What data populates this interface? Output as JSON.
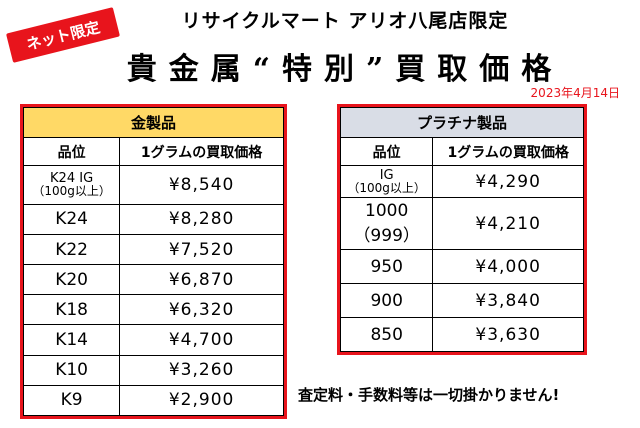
{
  "badge": "ネット限定",
  "store_title": "リサイクルマート アリオ八尾店限定",
  "main_title": "貴金属“特別”買取価格",
  "date": "2023年4月14日",
  "gold": {
    "caption": "金製品",
    "col_grade": "品位",
    "col_price": "1グラムの買取価格",
    "rows": [
      {
        "grade": "K24 IG",
        "grade_sub": "（100g以上）",
        "price": "¥8,540"
      },
      {
        "grade": "K24",
        "price": "¥8,280"
      },
      {
        "grade": "K22",
        "price": "¥7,520"
      },
      {
        "grade": "K20",
        "price": "¥6,870"
      },
      {
        "grade": "K18",
        "price": "¥6,320"
      },
      {
        "grade": "K14",
        "price": "¥4,700"
      },
      {
        "grade": "K10",
        "price": "¥3,260"
      },
      {
        "grade": "K9",
        "price": "¥2,900"
      }
    ]
  },
  "platinum": {
    "caption": "プラチナ製品",
    "col_grade": "品位",
    "col_price": "1グラムの買取価格",
    "rows": [
      {
        "grade": "IG",
        "grade_sub": "（100g以上）",
        "price": "¥4,290"
      },
      {
        "grade": "1000",
        "grade_sub": "（999）",
        "price": "¥4,210"
      },
      {
        "grade": "950",
        "price": "¥4,000"
      },
      {
        "grade": "900",
        "price": "¥3,840"
      },
      {
        "grade": "850",
        "price": "¥3,630"
      }
    ]
  },
  "footer": "査定料・手数料等は一切掛かりません!"
}
